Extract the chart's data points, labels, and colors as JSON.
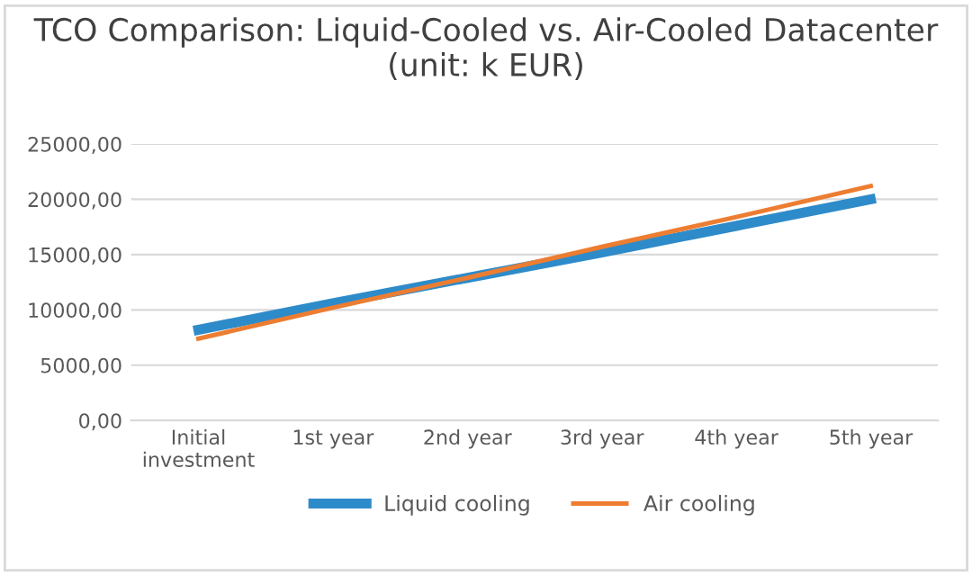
{
  "chart_data": {
    "type": "line",
    "title": "TCO Comparison: Liquid-Cooled vs. Air-Cooled Datacenter (unit: k EUR)",
    "categories": [
      "Initial\ninvestment",
      "1st year",
      "2nd year",
      "3rd year",
      "4th year",
      "5th year"
    ],
    "series": [
      {
        "name": "Liquid cooling",
        "color": "#2e8bc9",
        "values": [
          8200,
          10600,
          12900,
          15200,
          17600,
          20000
        ]
      },
      {
        "name": "Air cooling",
        "color": "#ed7d31",
        "values": [
          7400,
          10200,
          12900,
          15700,
          18400,
          21200
        ]
      }
    ],
    "ylim": [
      0,
      25000
    ],
    "yticks": [
      {
        "value": 0,
        "label": "0,00"
      },
      {
        "value": 5000,
        "label": "5000,00"
      },
      {
        "value": 10000,
        "label": "10000,00"
      },
      {
        "value": 15000,
        "label": "15000,00"
      },
      {
        "value": 20000,
        "label": "20000,00"
      },
      {
        "value": 25000,
        "label": "25000,00"
      }
    ],
    "grid": "y",
    "legend": "bottom",
    "marker": "none",
    "line_style": "solid"
  }
}
